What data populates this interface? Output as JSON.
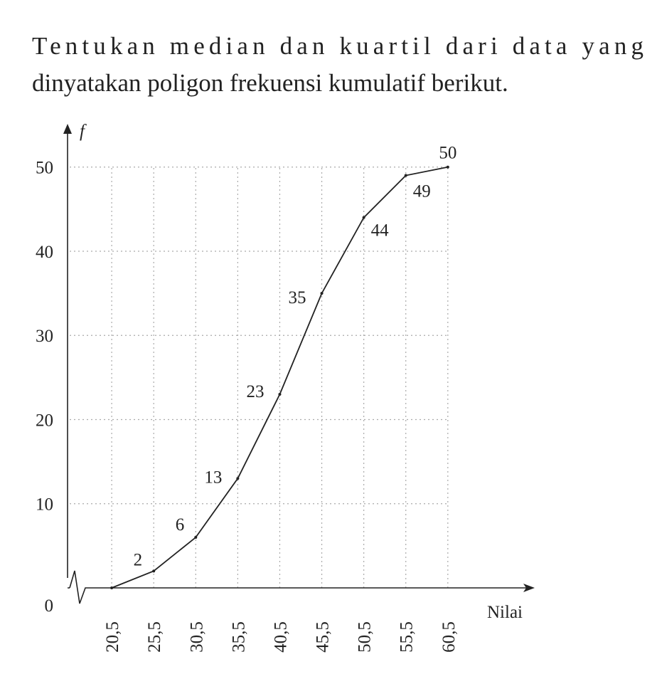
{
  "question_lines": [
    "Tentukan median dan kuartil dari data yang",
    "dinyatakan poligon frekuensi kumulatif berikut."
  ],
  "chart_data": {
    "type": "line",
    "y_label": "f",
    "x_label": "Nilai",
    "x": [
      20.5,
      25.5,
      30.5,
      35.5,
      40.5,
      45.5,
      50.5,
      55.5,
      60.5
    ],
    "series": [
      {
        "color": "#222222",
        "values": [
          0,
          2,
          6,
          13,
          23,
          35,
          44,
          49,
          50
        ]
      }
    ],
    "xlim": [
      15.5,
      70.5
    ],
    "xticks": [
      {
        "value": 20.5,
        "label": "20,5"
      },
      {
        "value": 25.5,
        "label": "25,5"
      },
      {
        "value": 30.5,
        "label": "30,5"
      },
      {
        "value": 35.5,
        "label": "35,5"
      },
      {
        "value": 40.5,
        "label": "40,5"
      },
      {
        "value": 45.5,
        "label": "45,5"
      },
      {
        "value": 50.5,
        "label": "50,5"
      },
      {
        "value": 55.5,
        "label": "55,5"
      },
      {
        "value": 60.5,
        "label": "60,5"
      }
    ],
    "ylim": [
      0,
      55
    ],
    "yticks": [
      0,
      10,
      20,
      30,
      40,
      50
    ],
    "grid": true
  }
}
